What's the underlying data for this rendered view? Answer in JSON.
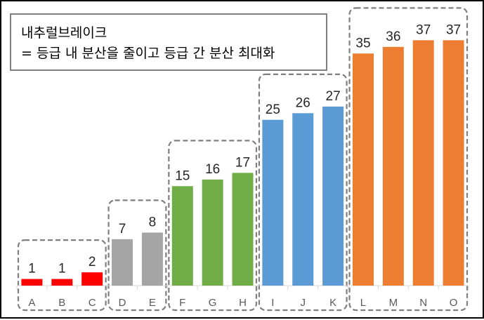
{
  "annotation": {
    "line1": "내추럴브레이크",
    "line2": "= 등급 내 분산을 줄이고 등급 간 분산 최대화"
  },
  "chart_data": {
    "type": "bar",
    "categories": [
      "A",
      "B",
      "C",
      "D",
      "E",
      "F",
      "G",
      "H",
      "I",
      "J",
      "K",
      "L",
      "M",
      "N",
      "O"
    ],
    "values": [
      1,
      1,
      2,
      7,
      8,
      15,
      16,
      17,
      25,
      26,
      27,
      35,
      36,
      37,
      37
    ],
    "title": "",
    "xlabel": "",
    "ylabel": "",
    "ylim": [
      0,
      40
    ],
    "grid": false,
    "legend": "none",
    "groups": [
      {
        "members": [
          "A",
          "B",
          "C"
        ],
        "color": "#ff0000"
      },
      {
        "members": [
          "D",
          "E"
        ],
        "color": "#a5a5a5"
      },
      {
        "members": [
          "F",
          "G",
          "H"
        ],
        "color": "#70ad47"
      },
      {
        "members": [
          "I",
          "J",
          "K"
        ],
        "color": "#5b9bd5"
      },
      {
        "members": [
          "L",
          "M",
          "N",
          "O"
        ],
        "color": "#ed7d31"
      }
    ],
    "group_border_color": "#7f7f7f"
  }
}
